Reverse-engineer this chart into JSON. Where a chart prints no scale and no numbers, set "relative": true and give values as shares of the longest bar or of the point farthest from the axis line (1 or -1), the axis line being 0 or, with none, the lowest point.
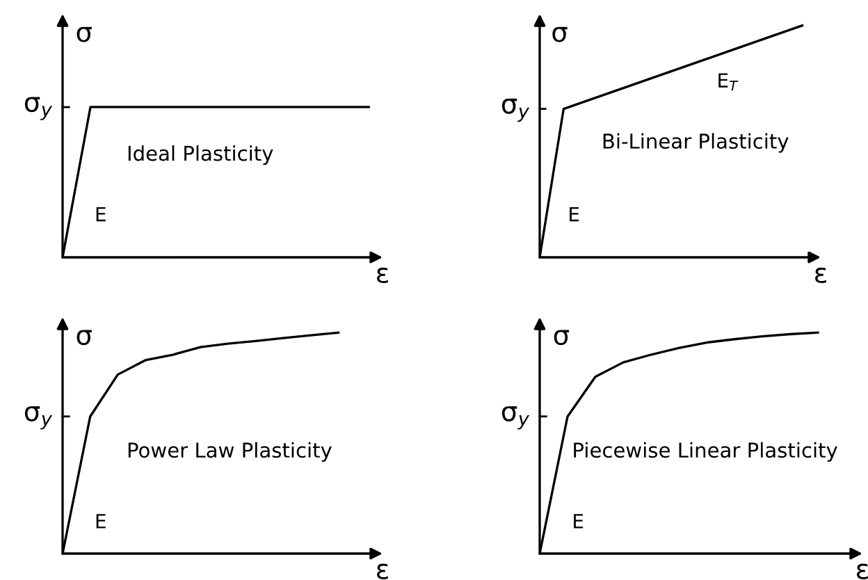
{
  "chart_data": [
    {
      "type": "line",
      "relative": true,
      "title": "Ideal Plasticity",
      "xlabel": "ε",
      "ylabel": "σ",
      "categories": [
        null,
        null,
        null,
        null,
        null,
        null,
        null,
        null,
        null,
        null,
        null,
        null
      ],
      "series": [
        {
          "color": "#000000",
          "values": [
            0,
            1,
            1,
            1,
            1,
            1,
            1,
            1,
            1,
            1,
            1,
            1
          ]
        }
      ],
      "annotations": [
        "σ$_{y}$",
        "E"
      ]
    },
    {
      "type": "line",
      "relative": true,
      "title": "Bi-Linear Plasticity",
      "xlabel": "ε",
      "ylabel": "σ",
      "categories": [
        null,
        null,
        null,
        null,
        null,
        null,
        null,
        null,
        null,
        null,
        null,
        null
      ],
      "series": [
        {
          "color": "#000000",
          "values": [
            0,
            0.64,
            0.676,
            0.712,
            0.748,
            0.784,
            0.82,
            0.856,
            0.892,
            0.928,
            0.964,
            1
          ]
        }
      ],
      "annotations": [
        "σ$_{y}$",
        "E",
        "E$_{T}$"
      ]
    },
    {
      "type": "line",
      "relative": true,
      "title": "Power Law Plasticity",
      "xlabel": "ε",
      "ylabel": "σ",
      "categories": [
        null,
        null,
        null,
        null,
        null,
        null,
        null,
        null,
        null,
        null,
        null
      ],
      "series": [
        {
          "color": "#000000",
          "values": [
            0,
            0.62,
            0.81,
            0.875,
            0.9,
            0.934,
            0.95,
            0.962,
            0.975,
            0.988,
            1
          ]
        }
      ],
      "annotations": [
        "σ$_{y}$",
        "E"
      ]
    },
    {
      "type": "line",
      "relative": true,
      "title": "Piecewise Linear Plasticity",
      "xlabel": "ε",
      "ylabel": "σ",
      "categories": [
        null,
        null,
        null,
        null,
        null,
        null,
        null,
        null,
        null,
        null,
        null
      ],
      "series": [
        {
          "color": "#000000",
          "values": [
            0,
            0.62,
            0.8,
            0.865,
            0.9,
            0.93,
            0.955,
            0.97,
            0.983,
            0.993,
            1
          ]
        }
      ],
      "annotations": [
        "σ$_{y}$",
        "E"
      ]
    }
  ]
}
